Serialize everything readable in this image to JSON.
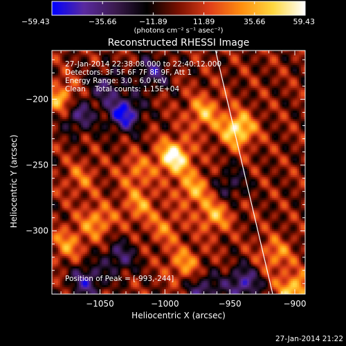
{
  "chart_data": {
    "type": "heatmap",
    "title": "Reconstructed RHESSI Image",
    "xlabel": "Heliocentric X (arcsec)",
    "ylabel": "Heliocentric Y (arcsec)",
    "xlim": [
      -1087,
      -892
    ],
    "ylim": [
      -348,
      -163
    ],
    "x_ticks": [
      -1050,
      -1000,
      -950,
      -900
    ],
    "x_tick_labels": [
      "−1050",
      "−1000",
      "−950",
      "−900"
    ],
    "y_ticks": [
      -200,
      -250,
      -300
    ],
    "y_tick_labels": [
      "−200",
      "−250",
      "−300"
    ],
    "colorbar": {
      "min": -59.43,
      "max": 59.43,
      "tick_values": [
        -59.43,
        -35.66,
        -11.89,
        11.89,
        35.66,
        59.43
      ],
      "tick_labels": [
        "−59.43",
        "−35.66",
        "−11.89",
        "11.89",
        "35.66",
        "59.43"
      ],
      "unit_label": "(photons cm⁻² s⁻¹ asec⁻²)"
    },
    "colormap": [
      "#0000ff",
      "#5a2aa0",
      "#3b1a4e",
      "#000000",
      "#7a1000",
      "#e0401a",
      "#ff8f10",
      "#ffd840",
      "#ffffff"
    ],
    "peak": {
      "x": -993,
      "y": -244,
      "value": 59.43
    },
    "limb": {
      "x_top": -961,
      "y_top": -163,
      "x_bottom": -917,
      "y_bottom": -348
    },
    "sources": [
      {
        "x": -993,
        "y": -244,
        "value": 59
      },
      {
        "x": -1031,
        "y": -211,
        "value": -57
      },
      {
        "x": -944,
        "y": -223,
        "value": 54
      },
      {
        "x": -1045,
        "y": -190,
        "value": -30
      },
      {
        "x": -1067,
        "y": -212,
        "value": -38
      },
      {
        "x": -1010,
        "y": -180,
        "value": -35
      },
      {
        "x": -1080,
        "y": -200,
        "value": 38
      },
      {
        "x": -970,
        "y": -210,
        "value": 35
      },
      {
        "x": -978,
        "y": -268,
        "value": 34
      },
      {
        "x": -1052,
        "y": -293,
        "value": 32
      },
      {
        "x": -1020,
        "y": -280,
        "value": 28
      },
      {
        "x": -962,
        "y": -288,
        "value": 34
      },
      {
        "x": -915,
        "y": -318,
        "value": 28
      },
      {
        "x": -985,
        "y": -325,
        "value": 30
      },
      {
        "x": -1060,
        "y": -338,
        "value": -40
      },
      {
        "x": -1035,
        "y": -320,
        "value": -32
      },
      {
        "x": -970,
        "y": -345,
        "value": -35
      },
      {
        "x": -940,
        "y": -340,
        "value": -45
      },
      {
        "x": -1075,
        "y": -310,
        "value": 28
      },
      {
        "x": -1022,
        "y": -255,
        "value": 24
      },
      {
        "x": -950,
        "y": -265,
        "value": -25
      },
      {
        "x": -1065,
        "y": -260,
        "value": 20
      },
      {
        "x": -900,
        "y": -345,
        "value": 45
      },
      {
        "x": -1000,
        "y": -298,
        "value": 22
      }
    ]
  },
  "annotations": {
    "time_range": "27-Jan-2014 22:38:08.000 to 22:40:12.000",
    "detectors": "Detectors: 3F 5F 6F 7F 8F 9F, Att 1",
    "energy": "Energy Range: 3.0 - 6.0 keV",
    "clean": "Clean    Total counts: 1.15E+04",
    "peak_label": "Position of Peak = [-993,-244]"
  },
  "timestamp": "27-Jan-2014 21:22"
}
